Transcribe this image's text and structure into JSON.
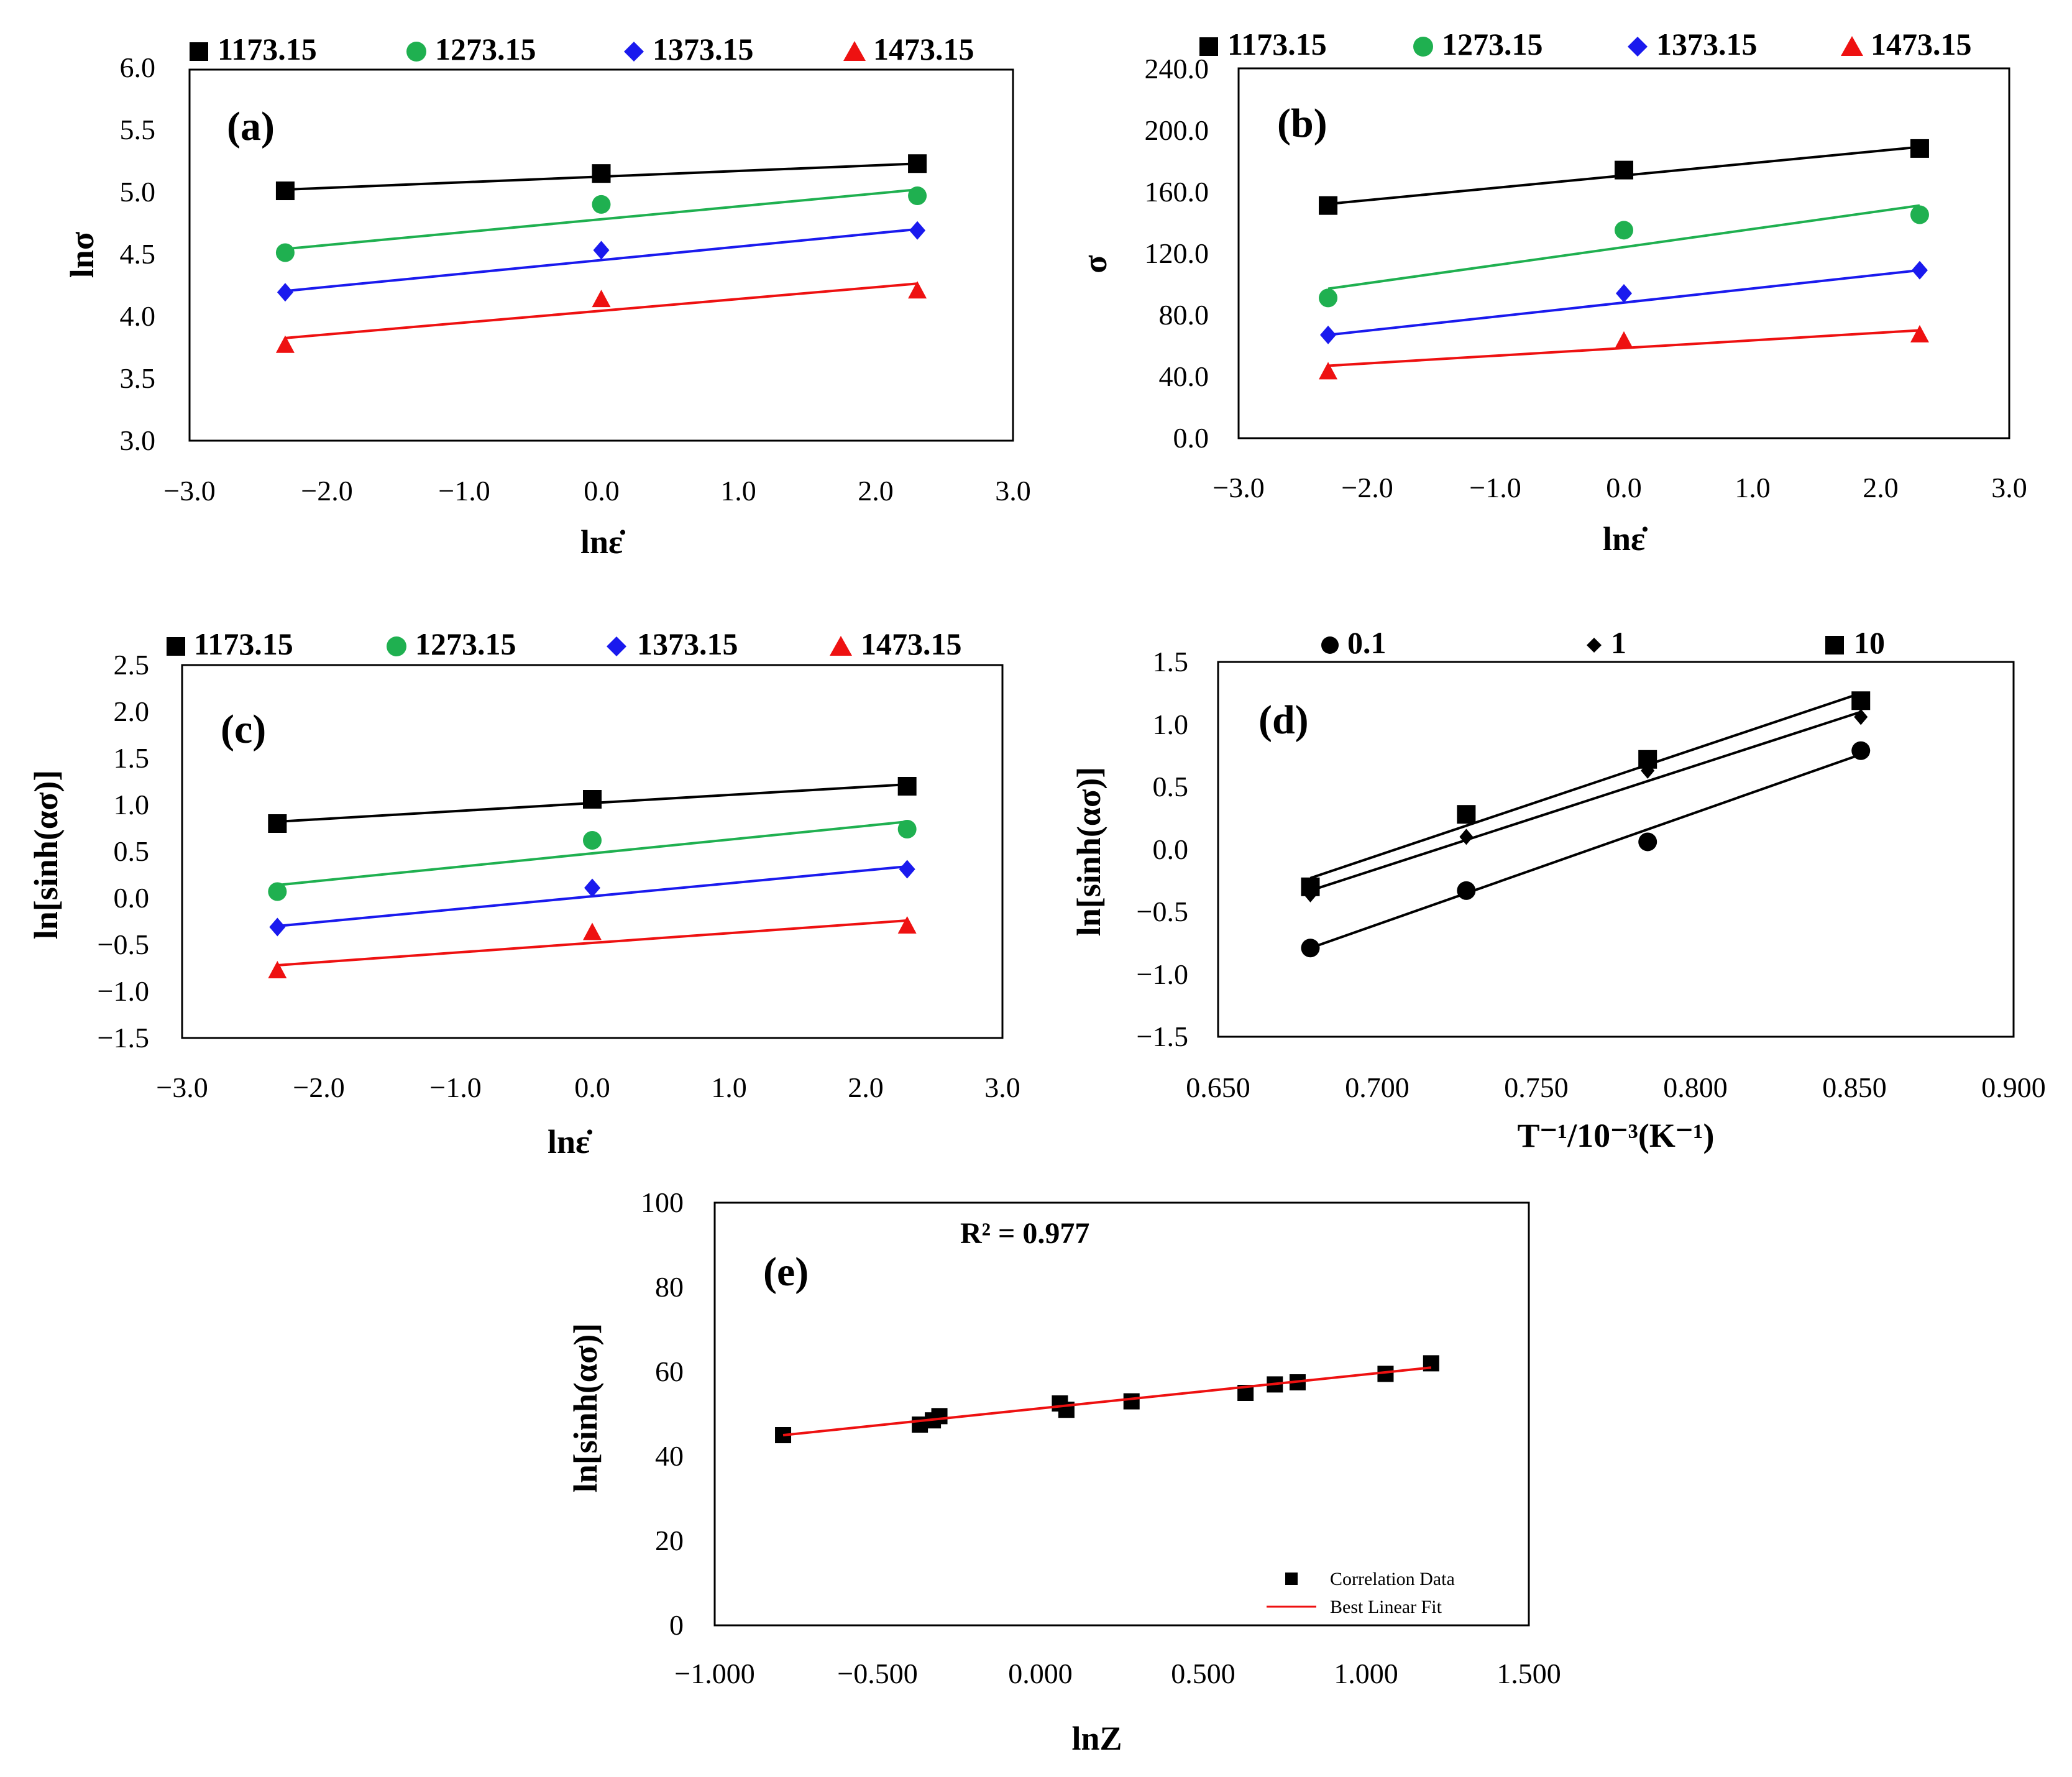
{
  "figure": {
    "colors": {
      "black": "#000000",
      "green": "#1fb050",
      "blue": "#1a1aee",
      "red": "#ee1111"
    },
    "temperature_series": [
      "1173.15",
      "1273.15",
      "1373.15",
      "1473.15"
    ]
  },
  "chart_data": [
    {
      "id": "a",
      "panel_label": "(a)",
      "type": "scatter",
      "xlabel": "lnε̇",
      "ylabel": "lnσ",
      "xlim": [
        -3.0,
        3.0
      ],
      "ylim": [
        3.0,
        6.0
      ],
      "xticks": [
        "−3.0",
        "−2.0",
        "−1.0",
        "0.0",
        "1.0",
        "2.0",
        "3.0"
      ],
      "yticks": [
        "3.0",
        "3.5",
        "4.0",
        "4.5",
        "5.0",
        "5.5",
        "6.0"
      ],
      "legend_position": "top",
      "series": [
        {
          "name": "1173.15",
          "marker": "square",
          "color": "#000000",
          "x": [
            -2.303,
            0.0,
            2.303
          ],
          "y": [
            5.02,
            5.16,
            5.24
          ],
          "fit": [
            [
              -2.303,
              5.03
            ],
            [
              2.303,
              5.24
            ]
          ]
        },
        {
          "name": "1273.15",
          "marker": "circle",
          "color": "#1fb050",
          "x": [
            -2.303,
            0.0,
            2.303
          ],
          "y": [
            4.52,
            4.91,
            4.98
          ],
          "fit": [
            [
              -2.303,
              4.55
            ],
            [
              2.303,
              5.03
            ]
          ]
        },
        {
          "name": "1373.15",
          "marker": "diamond",
          "color": "#1a1aee",
          "x": [
            -2.303,
            0.0,
            2.303
          ],
          "y": [
            4.2,
            4.54,
            4.7
          ],
          "fit": [
            [
              -2.303,
              4.21
            ],
            [
              2.303,
              4.71
            ]
          ]
        },
        {
          "name": "1473.15",
          "marker": "triangle",
          "color": "#ee1111",
          "x": [
            -2.303,
            0.0,
            2.303
          ],
          "y": [
            3.77,
            4.14,
            4.21
          ],
          "fit": [
            [
              -2.303,
              3.83
            ],
            [
              2.303,
              4.27
            ]
          ]
        }
      ]
    },
    {
      "id": "b",
      "panel_label": "(b)",
      "type": "scatter",
      "xlabel": "lnε̇",
      "ylabel": "σ",
      "xlim": [
        -3.0,
        3.0
      ],
      "ylim": [
        0.0,
        240.0
      ],
      "xticks": [
        "−3.0",
        "−2.0",
        "−1.0",
        "0.0",
        "1.0",
        "2.0",
        "3.0"
      ],
      "yticks": [
        "0.0",
        "40.0",
        "80.0",
        "120.0",
        "160.0",
        "200.0",
        "240.0"
      ],
      "legend_position": "top",
      "series": [
        {
          "name": "1173.15",
          "marker": "square",
          "color": "#000000",
          "x": [
            -2.303,
            0.0,
            2.303
          ],
          "y": [
            151,
            174,
            188
          ],
          "fit": [
            [
              -2.303,
              152
            ],
            [
              2.303,
              189
            ]
          ]
        },
        {
          "name": "1273.15",
          "marker": "circle",
          "color": "#1fb050",
          "x": [
            -2.303,
            0.0,
            2.303
          ],
          "y": [
            91,
            135,
            145
          ],
          "fit": [
            [
              -2.303,
              97
            ],
            [
              2.303,
              151
            ]
          ]
        },
        {
          "name": "1373.15",
          "marker": "diamond",
          "color": "#1a1aee",
          "x": [
            -2.303,
            0.0,
            2.303
          ],
          "y": [
            67,
            94,
            109
          ],
          "fit": [
            [
              -2.303,
              67
            ],
            [
              2.303,
              109
            ]
          ]
        },
        {
          "name": "1473.15",
          "marker": "triangle",
          "color": "#ee1111",
          "x": [
            -2.303,
            0.0,
            2.303
          ],
          "y": [
            43,
            63,
            67
          ],
          "fit": [
            [
              -2.303,
              47
            ],
            [
              2.303,
              70
            ]
          ]
        }
      ]
    },
    {
      "id": "c",
      "panel_label": "(c)",
      "type": "scatter",
      "xlabel": "lnε̇",
      "ylabel": "ln[sinh(ασ)]",
      "xlim": [
        -3.0,
        3.0
      ],
      "ylim": [
        -1.5,
        2.5
      ],
      "xticks": [
        "−3.0",
        "−2.0",
        "−1.0",
        "0.0",
        "1.0",
        "2.0",
        "3.0"
      ],
      "yticks": [
        "−1.5",
        "−1.0",
        "−0.5",
        "0.0",
        "0.5",
        "1.0",
        "1.5",
        "2.0",
        "2.5"
      ],
      "legend_position": "top",
      "series": [
        {
          "name": "1173.15",
          "marker": "square",
          "color": "#000000",
          "x": [
            -2.303,
            0.0,
            2.303
          ],
          "y": [
            0.8,
            1.06,
            1.2
          ],
          "fit": [
            [
              -2.303,
              0.82
            ],
            [
              2.303,
              1.22
            ]
          ]
        },
        {
          "name": "1273.15",
          "marker": "circle",
          "color": "#1fb050",
          "x": [
            -2.303,
            0.0,
            2.303
          ],
          "y": [
            0.07,
            0.62,
            0.74
          ],
          "fit": [
            [
              -2.303,
              0.14
            ],
            [
              2.303,
              0.82
            ]
          ]
        },
        {
          "name": "1373.15",
          "marker": "diamond",
          "color": "#1a1aee",
          "x": [
            -2.303,
            0.0,
            2.303
          ],
          "y": [
            -0.31,
            0.11,
            0.31
          ],
          "fit": [
            [
              -2.303,
              -0.3
            ],
            [
              2.303,
              0.34
            ]
          ]
        },
        {
          "name": "1473.15",
          "marker": "triangle",
          "color": "#ee1111",
          "x": [
            -2.303,
            0.0,
            2.303
          ],
          "y": [
            -0.78,
            -0.37,
            -0.3
          ],
          "fit": [
            [
              -2.303,
              -0.72
            ],
            [
              2.303,
              -0.24
            ]
          ]
        }
      ]
    },
    {
      "id": "d",
      "panel_label": "(d)",
      "type": "scatter",
      "xlabel": "T⁻¹/10⁻³(K⁻¹)",
      "ylabel": "ln[sinh(ασ)]",
      "xlim": [
        0.65,
        0.9
      ],
      "ylim": [
        -1.5,
        1.5
      ],
      "xticks": [
        "0.650",
        "0.700",
        "0.750",
        "0.800",
        "0.850",
        "0.900"
      ],
      "yticks": [
        "−1.5",
        "−1.0",
        "−0.5",
        "0.0",
        "0.5",
        "1.0",
        "1.5"
      ],
      "legend_position": "top",
      "series": [
        {
          "name": "0.1",
          "marker": "circle",
          "color": "#000000",
          "x": [
            0.679,
            0.728,
            0.785,
            0.852
          ],
          "y": [
            -0.79,
            -0.33,
            0.06,
            0.79
          ],
          "fit": [
            [
              0.679,
              -0.79
            ],
            [
              0.852,
              0.76
            ]
          ]
        },
        {
          "name": "1",
          "marker": "diamond-small",
          "color": "#000000",
          "x": [
            0.679,
            0.728,
            0.785,
            0.852
          ],
          "y": [
            -0.36,
            0.1,
            0.63,
            1.06
          ],
          "fit": [
            [
              0.679,
              -0.33
            ],
            [
              0.852,
              1.1
            ]
          ]
        },
        {
          "name": "10",
          "marker": "square",
          "color": "#000000",
          "x": [
            0.679,
            0.728,
            0.785,
            0.852
          ],
          "y": [
            -0.3,
            0.28,
            0.72,
            1.19
          ],
          "fit": [
            [
              0.679,
              -0.23
            ],
            [
              0.852,
              1.25
            ]
          ]
        }
      ]
    },
    {
      "id": "e",
      "panel_label": "(e)",
      "type": "scatter",
      "xlabel": "lnZ",
      "ylabel": "ln[sinh(ασ)]",
      "annotation": "R² = 0.977",
      "xlim": [
        -1.0,
        1.5
      ],
      "ylim": [
        0,
        100
      ],
      "xticks": [
        "−1.000",
        "−0.500",
        "0.000",
        "0.500",
        "1.000",
        "1.500"
      ],
      "yticks": [
        "0",
        "20",
        "40",
        "60",
        "80",
        "100"
      ],
      "legend_position": "bottom-right",
      "series": [
        {
          "name": "Correlation Data",
          "marker": "square-small",
          "color": "#000000",
          "x": [
            -0.79,
            -0.37,
            -0.33,
            -0.31,
            0.06,
            0.08,
            0.28,
            0.63,
            0.72,
            0.79,
            1.06,
            1.2
          ],
          "y": [
            45.0,
            47.5,
            48.5,
            49.5,
            52.5,
            51.0,
            53.0,
            55.0,
            57.0,
            57.5,
            59.5,
            62.0
          ]
        },
        {
          "name": "Best Linear Fit",
          "marker": "line",
          "color": "#ee1111",
          "fit": [
            [
              -0.79,
              45.0
            ],
            [
              1.2,
              61.0
            ]
          ]
        }
      ]
    }
  ]
}
